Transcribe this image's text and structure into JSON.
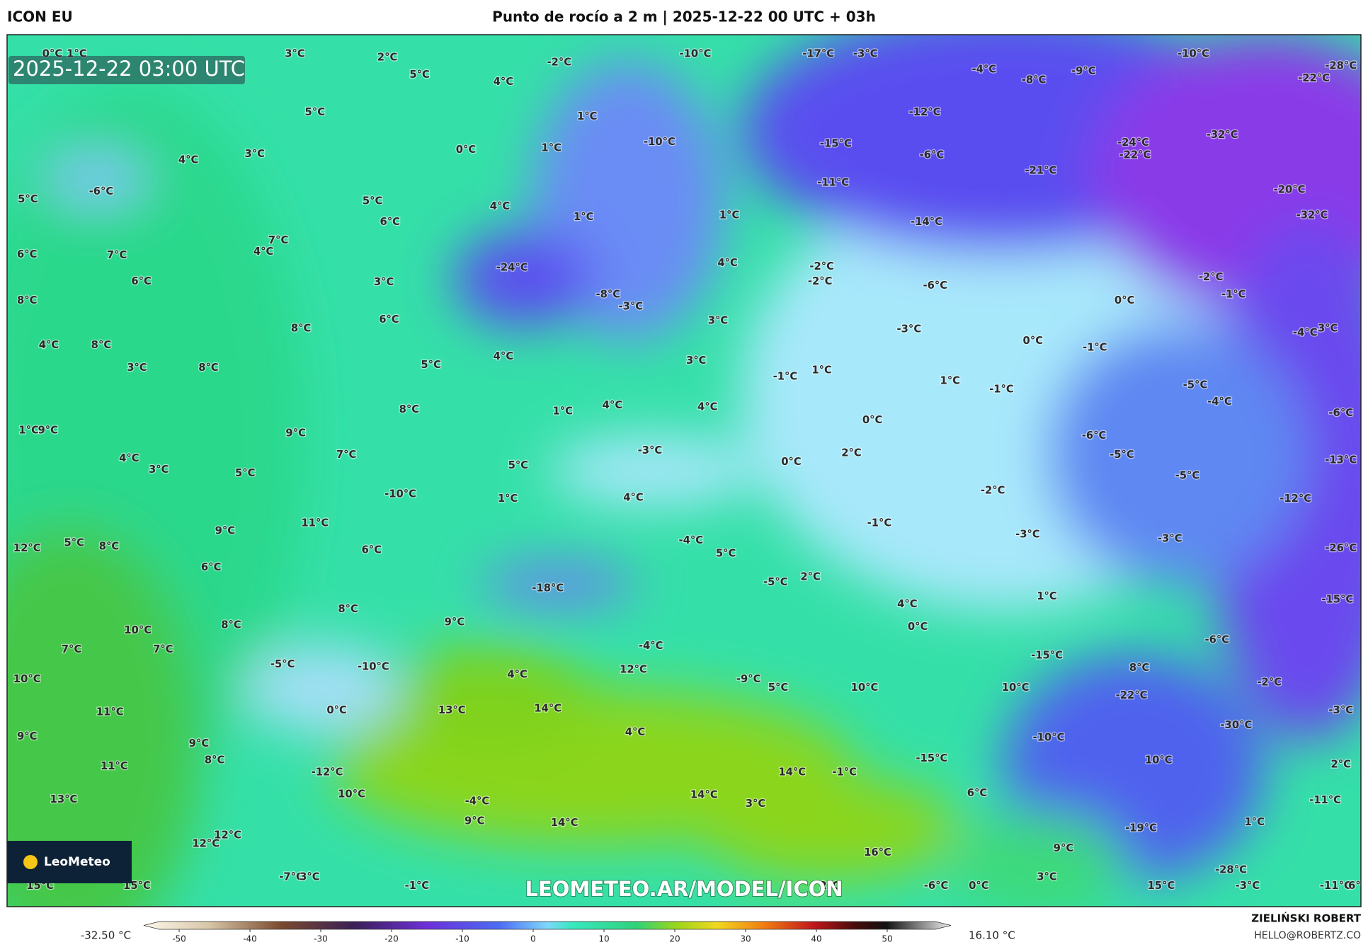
{
  "header": {
    "model": "ICON EU",
    "title": "Punto de rocío a 2 m | 2025-12-22 00 UTC + 03h"
  },
  "timestamp": "2025-12-22 03:00 UTC",
  "watermark": "LEOMETEO.AR/MODEL/ICON",
  "logo": "LeoMeteo",
  "colorbar": {
    "min_label": "-32.50 °C",
    "max_label": "16.10 °C",
    "lim": [
      -55,
      59
    ],
    "ticks": [
      -50,
      -40,
      -30,
      -20,
      -10,
      0,
      10,
      20,
      30,
      40,
      50
    ]
  },
  "credit": {
    "name": "ZIELIŃSKI ROBERT",
    "email": "HELLO@ROBERTZ.CO"
  },
  "map_labels": [
    "0°C",
    "1°C",
    "3°C",
    "2°C",
    "5°C",
    "4°C",
    "-2°C",
    "-10°C",
    "-17°C",
    "-3°C",
    "-4°C",
    "-8°C",
    "-9°C",
    "-10°C",
    "-28°C",
    "-22°C",
    "5°C",
    "1°C",
    "-12°C",
    "-32°C",
    "-24°C",
    "-22°C",
    "0°C",
    "1°C",
    "-10°C",
    "-15°C",
    "-6°C",
    "4°C",
    "3°C",
    "-6°C",
    "-21°C",
    "-11°C",
    "-20°C",
    "-32°C",
    "5°C",
    "5°C",
    "4°C",
    "1°C",
    "1°C",
    "6°C",
    "-14°C",
    "7°C",
    "4°C",
    "6°C",
    "7°C",
    "6°C",
    "-24°C",
    "4°C",
    "-2°C",
    "-2°C",
    "-6°C",
    "-2°C",
    "-1°C",
    "0°C",
    "3°C",
    "8°C",
    "-8°C",
    "-3°C",
    "6°C",
    "8°C",
    "3°C",
    "-3°C",
    "-4°C",
    "3°C",
    "4°C",
    "8°C",
    "0°C",
    "-1°C",
    "4°C",
    "3°C",
    "3°C",
    "8°C",
    "5°C",
    "-1°C",
    "1°C",
    "1°C",
    "-1°C",
    "-5°C",
    "-4°C",
    "8°C",
    "1°C",
    "4°C",
    "4°C",
    "0°C",
    "-6°C",
    "1°C",
    "9°C",
    "9°C",
    "-6°C",
    "4°C",
    "3°C",
    "7°C",
    "5°C",
    "-3°C",
    "0°C",
    "2°C",
    "-5°C",
    "-13°C",
    "5°C",
    "-5°C",
    "-10°C",
    "1°C",
    "4°C",
    "-2°C",
    "-12°C",
    "11°C",
    "9°C",
    "-1°C",
    "-3°C",
    "-3°C",
    "12°C",
    "5°C",
    "8°C",
    "6°C",
    "-4°C",
    "5°C",
    "-26°C",
    "6°C",
    "-5°C",
    "2°C",
    "-18°C",
    "1°C",
    "-15°C",
    "8°C",
    "4°C",
    "10°C",
    "8°C",
    "9°C",
    "0°C",
    "7°C",
    "7°C",
    "-4°C",
    "-6°C",
    "-15°C",
    "-5°C",
    "-10°C",
    "12°C",
    "8°C",
    "10°C",
    "4°C",
    "-9°C",
    "5°C",
    "10°C",
    "10°C",
    "-22°C",
    "-2°C",
    "0°C",
    "11°C",
    "13°C",
    "14°C",
    "-3°C",
    "-30°C",
    "9°C",
    "4°C",
    "-10°C",
    "9°C",
    "8°C",
    "-15°C",
    "10°C",
    "11°C",
    "-12°C",
    "14°C",
    "-1°C",
    "2°C",
    "10°C",
    "14°C",
    "13°C",
    "-4°C",
    "3°C",
    "6°C",
    "-11°C",
    "9°C",
    "14°C",
    "1°C",
    "-19°C",
    "12°C",
    "12°C",
    "9°C",
    "16°C",
    "-28°C",
    "-7°C",
    "3°C",
    "3°C",
    "15°C",
    "15°C",
    "-1°C",
    "2°C",
    "-6°C",
    "0°C",
    "15°C",
    "-3°C",
    "-11°C",
    "6°C"
  ]
}
